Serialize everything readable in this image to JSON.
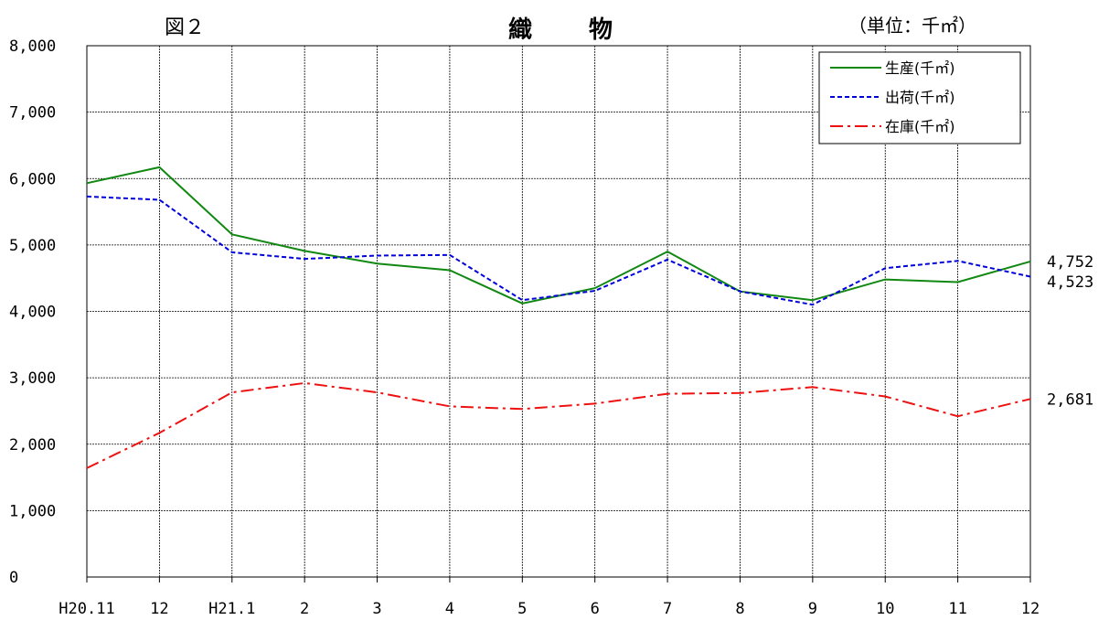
{
  "header": {
    "figure_label": "図２",
    "title": "織　物",
    "unit": "（単位：千㎡）"
  },
  "chart_data": {
    "type": "line",
    "title": "織　物",
    "categories": [
      "H20.11",
      "12",
      "H21.1",
      "2",
      "3",
      "4",
      "5",
      "6",
      "7",
      "8",
      "9",
      "10",
      "11",
      "12"
    ],
    "ylim": [
      0,
      8000
    ],
    "yticks": [
      0,
      1000,
      2000,
      3000,
      4000,
      5000,
      6000,
      7000,
      8000
    ],
    "ytick_labels": [
      "0",
      "1,000",
      "2,000",
      "3,000",
      "4,000",
      "5,000",
      "6,000",
      "7,000",
      "8,000"
    ],
    "grid": true,
    "legend_position": "top-right",
    "series": [
      {
        "name": "生産(千㎡)",
        "color": "#118811",
        "style": "solid",
        "values": [
          5930,
          6170,
          5160,
          4910,
          4720,
          4620,
          4120,
          4350,
          4900,
          4300,
          4170,
          4480,
          4440,
          4752
        ],
        "end_label": "4,752"
      },
      {
        "name": "出荷(千㎡)",
        "color": "#0000dd",
        "style": "dashed",
        "values": [
          5730,
          5680,
          4890,
          4790,
          4840,
          4850,
          4170,
          4310,
          4780,
          4300,
          4100,
          4650,
          4760,
          4523
        ],
        "end_label": "4,523"
      },
      {
        "name": "在庫(千㎡)",
        "color": "#ee1111",
        "style": "dashdot",
        "values": [
          1640,
          2170,
          2780,
          2920,
          2780,
          2570,
          2530,
          2610,
          2760,
          2770,
          2860,
          2720,
          2420,
          2681
        ],
        "end_label": "2,681"
      }
    ]
  }
}
